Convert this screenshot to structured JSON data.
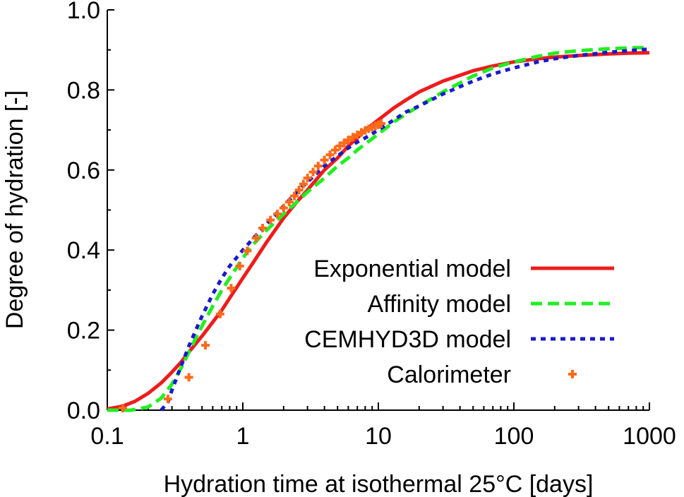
{
  "chart_data": {
    "type": "line",
    "title": "",
    "xlabel": "Hydration time at isothermal 25°C [days]",
    "ylabel": "Degree of hydration [-]",
    "xscale": "log",
    "xlim": [
      0.1,
      1000
    ],
    "ylim": [
      0.0,
      1.0
    ],
    "x_tick_labels": [
      "0.1",
      "1",
      "10",
      "100",
      "1000"
    ],
    "y_tick_labels": [
      "0.0",
      "0.2",
      "0.4",
      "0.6",
      "0.8",
      "1.0"
    ],
    "legend_position": "lower-right",
    "series": [
      {
        "name": "Exponential model",
        "style": "solid",
        "color": "#ee1c1c",
        "x": [
          0.1,
          0.13,
          0.16,
          0.2,
          0.25,
          0.3,
          0.35,
          0.4,
          0.5,
          0.6,
          0.7,
          0.8,
          1.0,
          1.2,
          1.5,
          2.0,
          2.5,
          3.0,
          4.0,
          5.0,
          6.0,
          7.0,
          8.0,
          10,
          13,
          16,
          20,
          30,
          50,
          70,
          100,
          150,
          200,
          300,
          500,
          700,
          1000
        ],
        "y": [
          0.003,
          0.01,
          0.022,
          0.042,
          0.068,
          0.095,
          0.12,
          0.145,
          0.185,
          0.22,
          0.25,
          0.28,
          0.33,
          0.37,
          0.42,
          0.48,
          0.52,
          0.55,
          0.6,
          0.63,
          0.66,
          0.68,
          0.7,
          0.725,
          0.755,
          0.775,
          0.795,
          0.822,
          0.848,
          0.86,
          0.87,
          0.878,
          0.882,
          0.886,
          0.89,
          0.892,
          0.893
        ]
      },
      {
        "name": "Affinity model",
        "style": "dashed",
        "color": "#22ee22",
        "x": [
          0.1,
          0.15,
          0.2,
          0.25,
          0.3,
          0.35,
          0.4,
          0.45,
          0.5,
          0.6,
          0.7,
          0.8,
          1.0,
          1.2,
          1.5,
          2.0,
          2.5,
          3.0,
          4.0,
          5.0,
          6.0,
          7.0,
          8.0,
          10,
          13,
          16,
          20,
          30,
          50,
          70,
          100,
          150,
          200,
          300,
          500,
          700,
          1000
        ],
        "y": [
          0.0,
          0.0,
          0.008,
          0.03,
          0.065,
          0.105,
          0.145,
          0.18,
          0.21,
          0.26,
          0.3,
          0.33,
          0.38,
          0.415,
          0.45,
          0.49,
          0.52,
          0.545,
          0.58,
          0.61,
          0.63,
          0.65,
          0.665,
          0.69,
          0.72,
          0.74,
          0.76,
          0.795,
          0.835,
          0.855,
          0.87,
          0.884,
          0.892,
          0.898,
          0.903,
          0.905,
          0.906
        ]
      },
      {
        "name": "CEMHYD3D model",
        "style": "dotted",
        "color": "#1a1acc",
        "x": [
          0.25,
          0.28,
          0.3,
          0.35,
          0.4,
          0.45,
          0.5,
          0.6,
          0.7,
          0.8,
          1.0,
          1.2,
          1.5,
          2.0,
          2.5,
          3.0,
          4.0,
          5.0,
          6.0,
          7.0,
          8.0,
          10,
          13,
          16,
          20,
          30,
          50,
          70,
          100,
          150,
          200,
          300,
          500,
          700,
          1000
        ],
        "y": [
          0.0,
          0.02,
          0.05,
          0.11,
          0.16,
          0.2,
          0.235,
          0.29,
          0.33,
          0.36,
          0.4,
          0.43,
          0.465,
          0.51,
          0.545,
          0.57,
          0.61,
          0.635,
          0.655,
          0.67,
          0.68,
          0.7,
          0.725,
          0.745,
          0.76,
          0.79,
          0.822,
          0.84,
          0.855,
          0.87,
          0.878,
          0.886,
          0.894,
          0.898,
          0.902
        ]
      },
      {
        "name": "Calorimeter",
        "style": "markers",
        "color": "#ff6a1a",
        "x": [
          0.13,
          0.28,
          0.4,
          0.53,
          0.68,
          0.82,
          0.95,
          1.08,
          1.25,
          1.4,
          1.6,
          1.8,
          2.0,
          2.2,
          2.4,
          2.6,
          2.8,
          3.0,
          3.3,
          3.6,
          4.0,
          4.4,
          4.8,
          5.2,
          5.6,
          6.0,
          6.5,
          7.0,
          7.5,
          8.0,
          8.5,
          9.0,
          9.5,
          10.0,
          10.5
        ],
        "y": [
          0.005,
          0.028,
          0.082,
          0.162,
          0.24,
          0.305,
          0.36,
          0.398,
          0.43,
          0.455,
          0.475,
          0.49,
          0.505,
          0.52,
          0.535,
          0.55,
          0.565,
          0.58,
          0.595,
          0.61,
          0.625,
          0.638,
          0.65,
          0.66,
          0.668,
          0.675,
          0.682,
          0.688,
          0.694,
          0.699,
          0.703,
          0.707,
          0.71,
          0.713,
          0.716
        ]
      }
    ]
  }
}
